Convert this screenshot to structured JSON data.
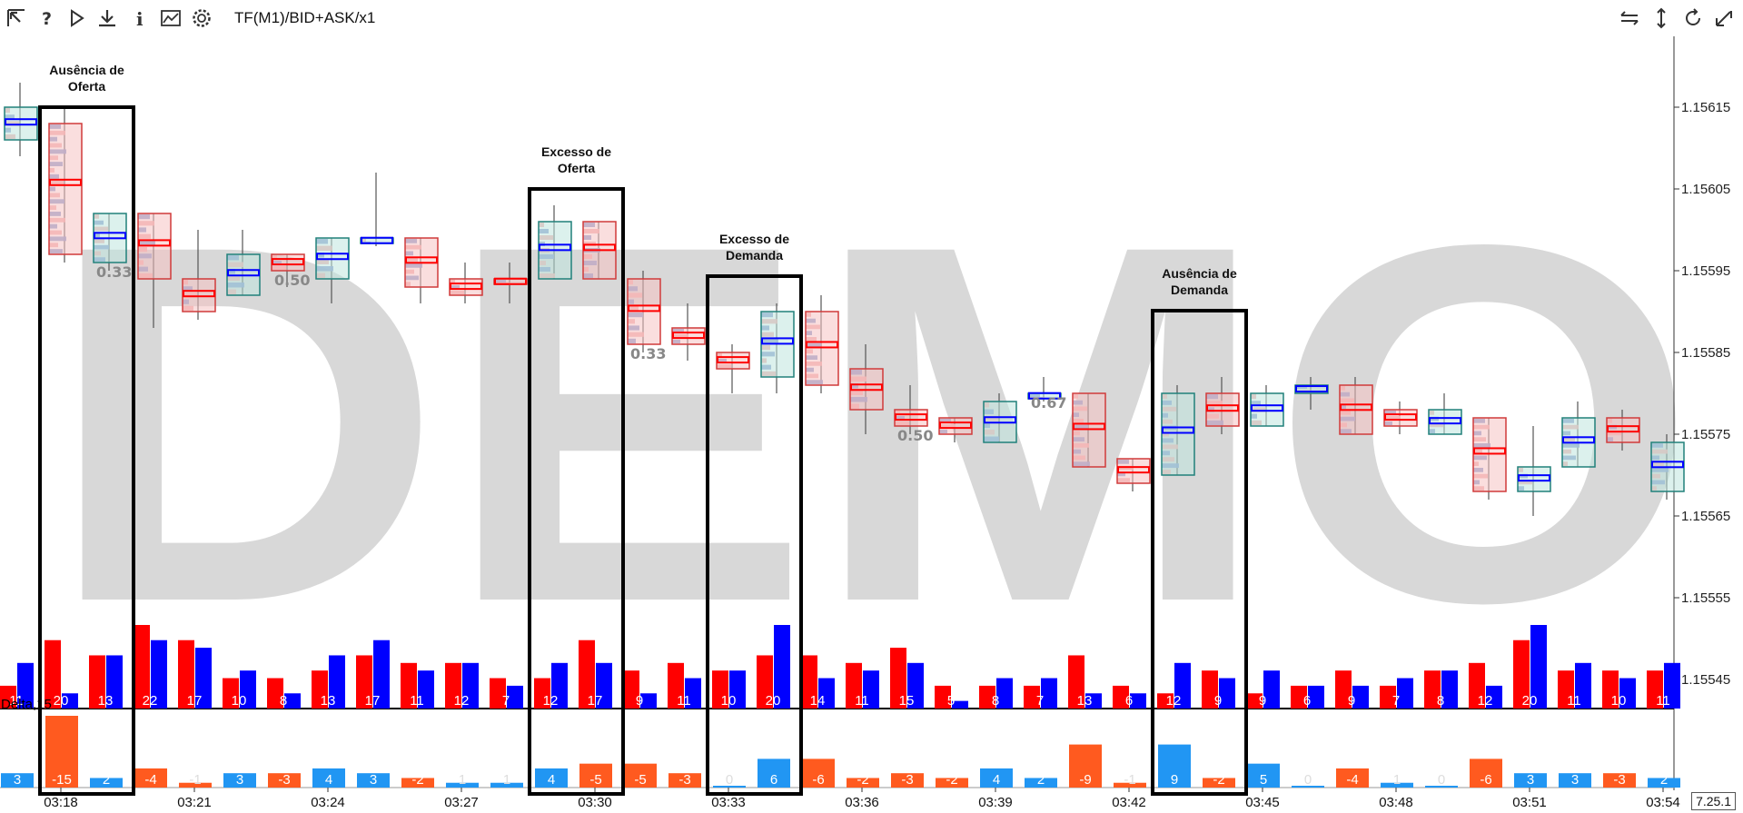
{
  "toolbar": {
    "title": "TF(M1)/BID+ASK/x1",
    "left_icons": [
      "cursor-arrow-icon",
      "help-icon",
      "play-icon",
      "download-icon",
      "info-icon",
      "chart-image-icon",
      "gear-icon"
    ],
    "right_icons": [
      "horizontal-scale-icon",
      "vertical-scale-icon",
      "refresh-icon",
      "reset-zoom-icon"
    ]
  },
  "watermark": "DEMO",
  "version": "7.25.1",
  "delta_label": "Delta,15",
  "colors": {
    "bid": "#ff0000",
    "ask": "#0000ff",
    "delta_pos": "#2196f3",
    "delta_neg": "#ff5a1f",
    "candle_up": "#20807a",
    "candle_down": "#d03a3a"
  },
  "annotations": [
    {
      "label_lines": [
        "Ausência de",
        "Oferta"
      ]
    },
    {
      "label_lines": [
        "Excesso de",
        "Oferta"
      ]
    },
    {
      "label_lines": [
        "Excesso de",
        "Demanda"
      ]
    },
    {
      "label_lines": [
        "Ausência de",
        "Demanda"
      ]
    }
  ],
  "chart_data": {
    "type": "bar",
    "y_ticks": [
      "1.15615",
      "1.15605",
      "1.15595",
      "1.15585",
      "1.15575",
      "1.15565",
      "1.15555",
      "1.15545"
    ],
    "x_ticks": [
      "03:18",
      "03:21",
      "03:24",
      "03:27",
      "03:30",
      "03:33",
      "03:36",
      "03:39",
      "03:42",
      "03:45",
      "03:48",
      "03:51",
      "03:54"
    ],
    "ratio_labels": [
      "0.33",
      "0.50",
      "0.33",
      "0.50",
      "0.67"
    ],
    "candles": [
      {
        "o": 1.15611,
        "c": 1.15615,
        "h": 1.15618,
        "l": 1.15609,
        "dir": "up"
      },
      {
        "o": 1.15613,
        "c": 1.15597,
        "h": 1.15615,
        "l": 1.15596,
        "dir": "down"
      },
      {
        "o": 1.15596,
        "c": 1.15602,
        "h": 1.15602,
        "l": 1.15595,
        "dir": "up"
      },
      {
        "o": 1.15602,
        "c": 1.15594,
        "h": 1.15602,
        "l": 1.15588,
        "dir": "down"
      },
      {
        "o": 1.15594,
        "c": 1.1559,
        "h": 1.156,
        "l": 1.15589,
        "dir": "down"
      },
      {
        "o": 1.15592,
        "c": 1.15597,
        "h": 1.156,
        "l": 1.15592,
        "dir": "up"
      },
      {
        "o": 1.15597,
        "c": 1.15595,
        "h": 1.15597,
        "l": 1.15593,
        "dir": "down"
      },
      {
        "o": 1.15594,
        "c": 1.15599,
        "h": 1.15599,
        "l": 1.15591,
        "dir": "up"
      },
      {
        "o": 1.15599,
        "c": 1.15599,
        "h": 1.15607,
        "l": 1.15598,
        "dir": "up"
      },
      {
        "o": 1.15599,
        "c": 1.15593,
        "h": 1.15599,
        "l": 1.15591,
        "dir": "down"
      },
      {
        "o": 1.15594,
        "c": 1.15592,
        "h": 1.15596,
        "l": 1.15591,
        "dir": "down"
      },
      {
        "o": 1.15594,
        "c": 1.15594,
        "h": 1.15596,
        "l": 1.15591,
        "dir": "down"
      },
      {
        "o": 1.15594,
        "c": 1.15601,
        "h": 1.15603,
        "l": 1.15594,
        "dir": "up"
      },
      {
        "o": 1.15601,
        "c": 1.15594,
        "h": 1.15601,
        "l": 1.15594,
        "dir": "down"
      },
      {
        "o": 1.15594,
        "c": 1.15586,
        "h": 1.15595,
        "l": 1.15585,
        "dir": "down"
      },
      {
        "o": 1.15588,
        "c": 1.15586,
        "h": 1.15591,
        "l": 1.15584,
        "dir": "down"
      },
      {
        "o": 1.15585,
        "c": 1.15583,
        "h": 1.15586,
        "l": 1.1558,
        "dir": "down"
      },
      {
        "o": 1.15582,
        "c": 1.1559,
        "h": 1.15591,
        "l": 1.1558,
        "dir": "up"
      },
      {
        "o": 1.1559,
        "c": 1.15581,
        "h": 1.15592,
        "l": 1.1558,
        "dir": "down"
      },
      {
        "o": 1.15583,
        "c": 1.15578,
        "h": 1.15586,
        "l": 1.15575,
        "dir": "down"
      },
      {
        "o": 1.15578,
        "c": 1.15576,
        "h": 1.15581,
        "l": 1.15575,
        "dir": "down"
      },
      {
        "o": 1.15577,
        "c": 1.15575,
        "h": 1.15577,
        "l": 1.15574,
        "dir": "down"
      },
      {
        "o": 1.15574,
        "c": 1.15579,
        "h": 1.1558,
        "l": 1.15574,
        "dir": "up"
      },
      {
        "o": 1.1558,
        "c": 1.1558,
        "h": 1.15582,
        "l": 1.15579,
        "dir": "up"
      },
      {
        "o": 1.1558,
        "c": 1.15571,
        "h": 1.1558,
        "l": 1.15571,
        "dir": "down"
      },
      {
        "o": 1.15572,
        "c": 1.15569,
        "h": 1.15572,
        "l": 1.15568,
        "dir": "down"
      },
      {
        "o": 1.1557,
        "c": 1.1558,
        "h": 1.15581,
        "l": 1.1557,
        "dir": "up"
      },
      {
        "o": 1.1558,
        "c": 1.15576,
        "h": 1.15582,
        "l": 1.15575,
        "dir": "down"
      },
      {
        "o": 1.15576,
        "c": 1.1558,
        "h": 1.15581,
        "l": 1.15576,
        "dir": "up"
      },
      {
        "o": 1.1558,
        "c": 1.15581,
        "h": 1.15582,
        "l": 1.15578,
        "dir": "up"
      },
      {
        "o": 1.15581,
        "c": 1.15575,
        "h": 1.15582,
        "l": 1.15575,
        "dir": "down"
      },
      {
        "o": 1.15576,
        "c": 1.15578,
        "h": 1.15579,
        "l": 1.15575,
        "dir": "down"
      },
      {
        "o": 1.15575,
        "c": 1.15578,
        "h": 1.1558,
        "l": 1.15575,
        "dir": "up"
      },
      {
        "o": 1.15577,
        "c": 1.15568,
        "h": 1.15577,
        "l": 1.15567,
        "dir": "down"
      },
      {
        "o": 1.15568,
        "c": 1.15571,
        "h": 1.15576,
        "l": 1.15565,
        "dir": "up"
      },
      {
        "o": 1.15571,
        "c": 1.15577,
        "h": 1.15579,
        "l": 1.15571,
        "dir": "up"
      },
      {
        "o": 1.15577,
        "c": 1.15574,
        "h": 1.15578,
        "l": 1.15573,
        "dir": "down"
      },
      {
        "o": 1.15568,
        "c": 1.15574,
        "h": 1.15575,
        "l": 1.15567,
        "dir": "up"
      }
    ],
    "volume": {
      "labels": [
        11,
        20,
        13,
        22,
        17,
        10,
        8,
        13,
        17,
        11,
        12,
        7,
        12,
        17,
        9,
        11,
        10,
        20,
        14,
        11,
        15,
        5,
        8,
        7,
        13,
        6,
        12,
        9,
        9,
        6,
        9,
        7,
        8,
        12,
        20,
        11,
        10,
        11
      ],
      "bid": [
        3,
        9,
        7,
        11,
        9,
        4,
        4,
        5,
        7,
        6,
        6,
        4,
        4,
        9,
        5,
        6,
        5,
        7,
        7,
        6,
        8,
        3,
        3,
        3,
        7,
        3,
        2,
        5,
        2,
        3,
        5,
        3,
        5,
        6,
        9,
        5,
        5,
        5
      ],
      "ask": [
        6,
        2,
        7,
        9,
        8,
        5,
        2,
        7,
        9,
        5,
        6,
        3,
        6,
        6,
        2,
        4,
        5,
        11,
        4,
        5,
        6,
        1,
        4,
        4,
        2,
        2,
        6,
        4,
        5,
        3,
        3,
        4,
        5,
        3,
        11,
        6,
        4,
        6
      ]
    },
    "delta": [
      3,
      -15,
      2,
      -4,
      -1,
      3,
      -3,
      4,
      3,
      -2,
      1,
      1,
      4,
      -5,
      -5,
      -3,
      0,
      6,
      -6,
      -2,
      -3,
      -2,
      4,
      2,
      -9,
      -1,
      9,
      -2,
      5,
      0,
      -4,
      1,
      0,
      -6,
      3,
      3,
      -3,
      2
    ]
  }
}
